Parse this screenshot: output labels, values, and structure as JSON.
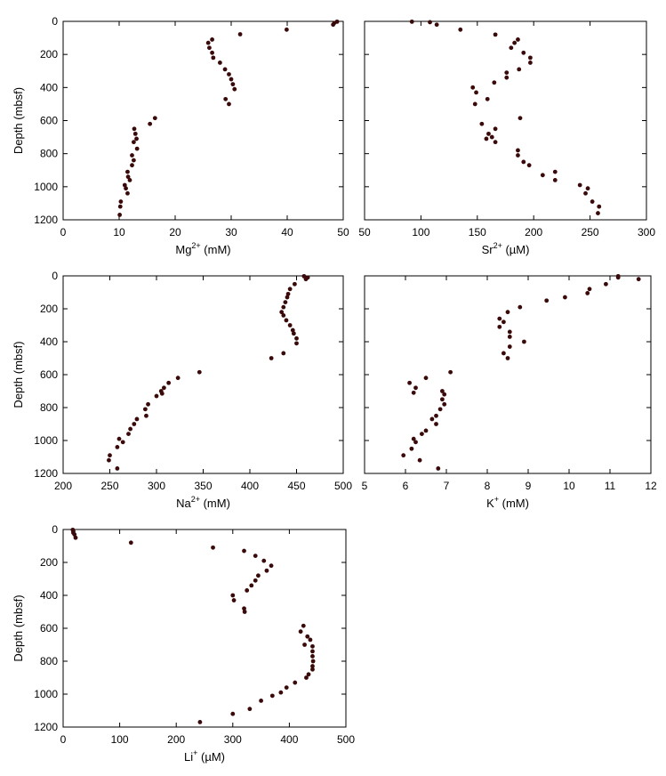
{
  "chart_data": [
    {
      "id": "mg",
      "type": "scatter",
      "title": "",
      "xlabel": {
        "base": "Mg",
        "sup": "2+",
        "unit": " (mM)"
      },
      "ylabel": "Depth (mbsf)",
      "xlim": [
        0,
        50
      ],
      "ylim": [
        1200,
        0
      ],
      "xticks": [
        "0",
        "10",
        "20",
        "30",
        "40",
        "50"
      ],
      "yticks": [
        "0",
        "200",
        "400",
        "600",
        "800",
        "1000",
        "1200"
      ],
      "show_yticklabels": true,
      "grid": false,
      "points": [
        {
          "x": 48.9,
          "y": 2
        },
        {
          "x": 48.4,
          "y": 10
        },
        {
          "x": 48.2,
          "y": 20
        },
        {
          "x": 39.9,
          "y": 50
        },
        {
          "x": 31.6,
          "y": 78
        },
        {
          "x": 26.6,
          "y": 110
        },
        {
          "x": 25.9,
          "y": 130
        },
        {
          "x": 26.1,
          "y": 160
        },
        {
          "x": 26.6,
          "y": 190
        },
        {
          "x": 26.8,
          "y": 220
        },
        {
          "x": 28.0,
          "y": 250
        },
        {
          "x": 28.9,
          "y": 290
        },
        {
          "x": 29.6,
          "y": 320
        },
        {
          "x": 30.0,
          "y": 350
        },
        {
          "x": 30.3,
          "y": 380
        },
        {
          "x": 30.6,
          "y": 410
        },
        {
          "x": 29.0,
          "y": 470
        },
        {
          "x": 29.6,
          "y": 500
        },
        {
          "x": 16.4,
          "y": 585
        },
        {
          "x": 15.5,
          "y": 620
        },
        {
          "x": 12.7,
          "y": 650
        },
        {
          "x": 12.9,
          "y": 680
        },
        {
          "x": 13.1,
          "y": 710
        },
        {
          "x": 12.6,
          "y": 730
        },
        {
          "x": 13.2,
          "y": 770
        },
        {
          "x": 12.3,
          "y": 810
        },
        {
          "x": 12.6,
          "y": 840
        },
        {
          "x": 12.3,
          "y": 870
        },
        {
          "x": 11.5,
          "y": 910
        },
        {
          "x": 11.6,
          "y": 940
        },
        {
          "x": 11.9,
          "y": 960
        },
        {
          "x": 11.0,
          "y": 990
        },
        {
          "x": 11.2,
          "y": 1010
        },
        {
          "x": 11.5,
          "y": 1040
        },
        {
          "x": 10.3,
          "y": 1090
        },
        {
          "x": 10.2,
          "y": 1120
        },
        {
          "x": 10.1,
          "y": 1170
        }
      ]
    },
    {
      "id": "sr",
      "type": "scatter",
      "title": "",
      "xlabel": {
        "base": "Sr",
        "sup": "2+",
        "unit": " (µM)"
      },
      "ylabel": "",
      "xlim": [
        50,
        300
      ],
      "ylim": [
        1200,
        0
      ],
      "xticks": [
        "50",
        "100",
        "150",
        "200",
        "250",
        "300"
      ],
      "yticks": [
        "0",
        "200",
        "400",
        "600",
        "800",
        "1000",
        "1200"
      ],
      "show_yticklabels": false,
      "grid": false,
      "points": [
        {
          "x": 92,
          "y": 2
        },
        {
          "x": 108,
          "y": 5
        },
        {
          "x": 114,
          "y": 20
        },
        {
          "x": 135,
          "y": 50
        },
        {
          "x": 166,
          "y": 80
        },
        {
          "x": 186,
          "y": 110
        },
        {
          "x": 183,
          "y": 130
        },
        {
          "x": 180,
          "y": 160
        },
        {
          "x": 191,
          "y": 190
        },
        {
          "x": 197,
          "y": 220
        },
        {
          "x": 197,
          "y": 250
        },
        {
          "x": 187,
          "y": 290
        },
        {
          "x": 176,
          "y": 310
        },
        {
          "x": 176,
          "y": 340
        },
        {
          "x": 165,
          "y": 370
        },
        {
          "x": 146,
          "y": 400
        },
        {
          "x": 149,
          "y": 430
        },
        {
          "x": 159,
          "y": 470
        },
        {
          "x": 148,
          "y": 500
        },
        {
          "x": 188,
          "y": 585
        },
        {
          "x": 154,
          "y": 620
        },
        {
          "x": 166,
          "y": 650
        },
        {
          "x": 160,
          "y": 680
        },
        {
          "x": 158,
          "y": 710
        },
        {
          "x": 163,
          "y": 700
        },
        {
          "x": 166,
          "y": 730
        },
        {
          "x": 186,
          "y": 780
        },
        {
          "x": 186,
          "y": 810
        },
        {
          "x": 191,
          "y": 850
        },
        {
          "x": 196,
          "y": 870
        },
        {
          "x": 219,
          "y": 910
        },
        {
          "x": 208,
          "y": 930
        },
        {
          "x": 219,
          "y": 960
        },
        {
          "x": 241,
          "y": 990
        },
        {
          "x": 248,
          "y": 1010
        },
        {
          "x": 246,
          "y": 1040
        },
        {
          "x": 252,
          "y": 1090
        },
        {
          "x": 258,
          "y": 1120
        },
        {
          "x": 257,
          "y": 1160
        }
      ]
    },
    {
      "id": "na",
      "type": "scatter",
      "title": "",
      "xlabel": {
        "base": "Na",
        "sup": "2+",
        "unit": " (mM)"
      },
      "ylabel": "Depth (mbsf)",
      "xlim": [
        200,
        500
      ],
      "ylim": [
        1200,
        0
      ],
      "xticks": [
        "200",
        "250",
        "300",
        "350",
        "400",
        "450",
        "500"
      ],
      "yticks": [
        "0",
        "200",
        "400",
        "600",
        "800",
        "1000",
        "1200"
      ],
      "show_yticklabels": true,
      "grid": false,
      "points": [
        {
          "x": 458,
          "y": 2
        },
        {
          "x": 462,
          "y": 10
        },
        {
          "x": 460,
          "y": 20
        },
        {
          "x": 448,
          "y": 50
        },
        {
          "x": 443,
          "y": 80
        },
        {
          "x": 441,
          "y": 110
        },
        {
          "x": 440,
          "y": 130
        },
        {
          "x": 438,
          "y": 160
        },
        {
          "x": 436,
          "y": 190
        },
        {
          "x": 434,
          "y": 220
        },
        {
          "x": 436,
          "y": 240
        },
        {
          "x": 439,
          "y": 270
        },
        {
          "x": 443,
          "y": 300
        },
        {
          "x": 446,
          "y": 330
        },
        {
          "x": 447,
          "y": 350
        },
        {
          "x": 450,
          "y": 380
        },
        {
          "x": 450,
          "y": 410
        },
        {
          "x": 436,
          "y": 470
        },
        {
          "x": 423,
          "y": 500
        },
        {
          "x": 346,
          "y": 585
        },
        {
          "x": 323,
          "y": 620
        },
        {
          "x": 313,
          "y": 650
        },
        {
          "x": 308,
          "y": 680
        },
        {
          "x": 305,
          "y": 700
        },
        {
          "x": 306,
          "y": 715
        },
        {
          "x": 300,
          "y": 730
        },
        {
          "x": 291,
          "y": 780
        },
        {
          "x": 288,
          "y": 810
        },
        {
          "x": 289,
          "y": 850
        },
        {
          "x": 279,
          "y": 870
        },
        {
          "x": 276,
          "y": 900
        },
        {
          "x": 272,
          "y": 930
        },
        {
          "x": 270,
          "y": 960
        },
        {
          "x": 260,
          "y": 990
        },
        {
          "x": 264,
          "y": 1010
        },
        {
          "x": 258,
          "y": 1040
        },
        {
          "x": 250,
          "y": 1090
        },
        {
          "x": 249,
          "y": 1120
        },
        {
          "x": 258,
          "y": 1170
        }
      ]
    },
    {
      "id": "k",
      "type": "scatter",
      "title": "",
      "xlabel": {
        "base": "K",
        "sup": "+",
        "unit": " (mM)"
      },
      "ylabel": "",
      "xlim": [
        5,
        12
      ],
      "ylim": [
        1200,
        0
      ],
      "xticks": [
        "5",
        "6",
        "7",
        "8",
        "9",
        "10",
        "11",
        "12"
      ],
      "yticks": [
        "0",
        "200",
        "400",
        "600",
        "800",
        "1000",
        "1200"
      ],
      "show_yticklabels": false,
      "grid": false,
      "points": [
        {
          "x": 11.2,
          "y": 2
        },
        {
          "x": 11.2,
          "y": 10
        },
        {
          "x": 11.7,
          "y": 20
        },
        {
          "x": 10.9,
          "y": 50
        },
        {
          "x": 10.5,
          "y": 80
        },
        {
          "x": 10.45,
          "y": 105
        },
        {
          "x": 9.9,
          "y": 130
        },
        {
          "x": 9.45,
          "y": 150
        },
        {
          "x": 8.8,
          "y": 190
        },
        {
          "x": 8.5,
          "y": 220
        },
        {
          "x": 8.3,
          "y": 260
        },
        {
          "x": 8.4,
          "y": 280
        },
        {
          "x": 8.3,
          "y": 310
        },
        {
          "x": 8.55,
          "y": 340
        },
        {
          "x": 8.55,
          "y": 370
        },
        {
          "x": 8.9,
          "y": 400
        },
        {
          "x": 8.55,
          "y": 430
        },
        {
          "x": 8.4,
          "y": 470
        },
        {
          "x": 8.5,
          "y": 500
        },
        {
          "x": 7.1,
          "y": 585
        },
        {
          "x": 6.5,
          "y": 620
        },
        {
          "x": 6.1,
          "y": 650
        },
        {
          "x": 6.25,
          "y": 680
        },
        {
          "x": 6.2,
          "y": 710
        },
        {
          "x": 6.9,
          "y": 700
        },
        {
          "x": 6.95,
          "y": 720
        },
        {
          "x": 6.9,
          "y": 750
        },
        {
          "x": 6.95,
          "y": 780
        },
        {
          "x": 6.85,
          "y": 810
        },
        {
          "x": 6.75,
          "y": 850
        },
        {
          "x": 6.65,
          "y": 870
        },
        {
          "x": 6.75,
          "y": 900
        },
        {
          "x": 6.5,
          "y": 940
        },
        {
          "x": 6.4,
          "y": 960
        },
        {
          "x": 6.2,
          "y": 990
        },
        {
          "x": 6.25,
          "y": 1010
        },
        {
          "x": 6.15,
          "y": 1050
        },
        {
          "x": 5.95,
          "y": 1090
        },
        {
          "x": 6.35,
          "y": 1120
        },
        {
          "x": 6.8,
          "y": 1170
        }
      ]
    },
    {
      "id": "li",
      "type": "scatter",
      "title": "",
      "xlabel": {
        "base": "Li",
        "sup": "+",
        "unit": " (µM)"
      },
      "ylabel": "Depth (mbsf)",
      "xlim": [
        0,
        500
      ],
      "ylim": [
        1200,
        0
      ],
      "xticks": [
        "0",
        "100",
        "200",
        "300",
        "400",
        "500"
      ],
      "yticks": [
        "0",
        "200",
        "400",
        "600",
        "800",
        "1000",
        "1200"
      ],
      "show_yticklabels": true,
      "grid": false,
      "points": [
        {
          "x": 17,
          "y": 2
        },
        {
          "x": 18,
          "y": 10
        },
        {
          "x": 18,
          "y": 20
        },
        {
          "x": 20,
          "y": 30
        },
        {
          "x": 22,
          "y": 50
        },
        {
          "x": 120,
          "y": 80
        },
        {
          "x": 265,
          "y": 110
        },
        {
          "x": 320,
          "y": 130
        },
        {
          "x": 340,
          "y": 160
        },
        {
          "x": 355,
          "y": 190
        },
        {
          "x": 368,
          "y": 220
        },
        {
          "x": 360,
          "y": 250
        },
        {
          "x": 345,
          "y": 280
        },
        {
          "x": 340,
          "y": 310
        },
        {
          "x": 333,
          "y": 340
        },
        {
          "x": 325,
          "y": 370
        },
        {
          "x": 300,
          "y": 400
        },
        {
          "x": 302,
          "y": 430
        },
        {
          "x": 320,
          "y": 480
        },
        {
          "x": 321,
          "y": 500
        },
        {
          "x": 425,
          "y": 585
        },
        {
          "x": 420,
          "y": 620
        },
        {
          "x": 432,
          "y": 650
        },
        {
          "x": 437,
          "y": 670
        },
        {
          "x": 427,
          "y": 700
        },
        {
          "x": 441,
          "y": 710
        },
        {
          "x": 441,
          "y": 740
        },
        {
          "x": 441,
          "y": 770
        },
        {
          "x": 442,
          "y": 800
        },
        {
          "x": 441,
          "y": 830
        },
        {
          "x": 441,
          "y": 850
        },
        {
          "x": 434,
          "y": 880
        },
        {
          "x": 430,
          "y": 900
        },
        {
          "x": 410,
          "y": 930
        },
        {
          "x": 395,
          "y": 960
        },
        {
          "x": 385,
          "y": 990
        },
        {
          "x": 370,
          "y": 1010
        },
        {
          "x": 350,
          "y": 1040
        },
        {
          "x": 330,
          "y": 1090
        },
        {
          "x": 300,
          "y": 1120
        },
        {
          "x": 242,
          "y": 1170
        }
      ]
    }
  ]
}
